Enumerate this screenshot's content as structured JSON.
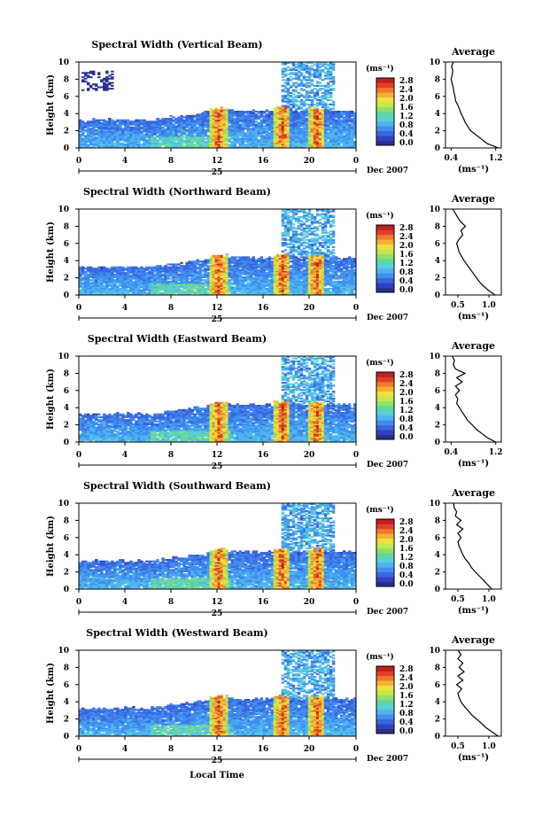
{
  "colors": {
    "colormap": [
      "#2a2f8f",
      "#3040c0",
      "#3a66e0",
      "#3f8fef",
      "#4fb4ef",
      "#58cfd9",
      "#5fd6a0",
      "#8ee06a",
      "#c4e84a",
      "#f0e040",
      "#f5b133",
      "#f07a2a",
      "#e0402a",
      "#c0201e"
    ],
    "background": "#ffffff"
  },
  "shared": {
    "height_axis_label": "Height (km)",
    "colorbar_unit": "(ms⁻¹)",
    "colorbar_ticks": [
      "2.8",
      "2.4",
      "2.0",
      "1.6",
      "1.2",
      "0.8",
      "0.4",
      "0.0"
    ],
    "time_ticks": [
      "0",
      "4",
      "8",
      "12",
      "16",
      "20",
      "0"
    ],
    "date_day": "25",
    "date_label": "Dec 2007",
    "height_ticks": [
      "10",
      "8",
      "6",
      "4",
      "2",
      "0"
    ],
    "avg_title": "Average",
    "avg_unit": "(ms⁻¹)",
    "xlabel": "Local Time"
  },
  "chart_data": [
    {
      "type": "heatmap",
      "title": "Spectral Width (Vertical Beam)",
      "xlabel": "Local Time",
      "ylabel": "Height (km)",
      "xlim": [
        0,
        24
      ],
      "ylim": [
        0,
        10
      ],
      "clim": [
        0.0,
        2.8
      ],
      "average_profile": {
        "xticks": [
          "0.4",
          "1.2"
        ],
        "xlim": [
          0.3,
          1.3
        ],
        "height": [
          0,
          0.5,
          1,
          1.5,
          2,
          2.5,
          3,
          3.5,
          4,
          4.5,
          5,
          5.5,
          6,
          6.5,
          7,
          7.5,
          8,
          8.5,
          9,
          9.5,
          10
        ],
        "width": [
          1.25,
          1.05,
          0.95,
          0.85,
          0.75,
          0.7,
          0.65,
          0.62,
          0.58,
          0.55,
          0.52,
          0.48,
          0.47,
          0.45,
          0.44,
          0.42,
          0.4,
          0.42,
          0.43,
          0.41,
          0.44
        ]
      }
    },
    {
      "type": "heatmap",
      "title": "Spectral Width (Northward Beam)",
      "xlabel": "Local Time",
      "ylabel": "Height (km)",
      "xlim": [
        0,
        24
      ],
      "ylim": [
        0,
        10
      ],
      "clim": [
        0.0,
        2.8
      ],
      "average_profile": {
        "xticks": [
          "0.5",
          "1.0"
        ],
        "xlim": [
          0.3,
          1.2
        ],
        "height": [
          0,
          0.5,
          1,
          1.5,
          2,
          2.5,
          3,
          3.5,
          4,
          4.5,
          5,
          5.5,
          6,
          6.5,
          7,
          7.5,
          8,
          8.5,
          9,
          9.5,
          10
        ],
        "width": [
          1.1,
          1.0,
          0.92,
          0.85,
          0.8,
          0.75,
          0.7,
          0.65,
          0.6,
          0.56,
          0.52,
          0.5,
          0.48,
          0.52,
          0.58,
          0.55,
          0.62,
          0.55,
          0.5,
          0.46,
          0.42
        ]
      }
    },
    {
      "type": "heatmap",
      "title": "Spectral Width (Eastward Beam)",
      "xlabel": "Local Time",
      "ylabel": "Height (km)",
      "xlim": [
        0,
        24
      ],
      "ylim": [
        0,
        10
      ],
      "clim": [
        0.0,
        2.8
      ],
      "average_profile": {
        "xticks": [
          "0.4",
          "1.2"
        ],
        "xlim": [
          0.3,
          1.3
        ],
        "height": [
          0,
          0.5,
          1,
          1.5,
          2,
          2.5,
          3,
          3.5,
          4,
          4.5,
          5,
          5.5,
          6,
          6.5,
          7,
          7.5,
          8,
          8.5,
          9,
          9.5,
          10
        ],
        "width": [
          1.2,
          1.05,
          0.95,
          0.85,
          0.78,
          0.7,
          0.65,
          0.6,
          0.55,
          0.5,
          0.52,
          0.48,
          0.55,
          0.48,
          0.6,
          0.5,
          0.65,
          0.48,
          0.44,
          0.46,
          0.42
        ]
      }
    },
    {
      "type": "heatmap",
      "title": "Spectral Width (Southward Beam)",
      "xlabel": "Local Time",
      "ylabel": "Height (km)",
      "xlim": [
        0,
        24
      ],
      "ylim": [
        0,
        10
      ],
      "clim": [
        0.0,
        2.8
      ],
      "average_profile": {
        "xticks": [
          "0.5",
          "1.0"
        ],
        "xlim": [
          0.3,
          1.2
        ],
        "height": [
          0,
          0.5,
          1,
          1.5,
          2,
          2.5,
          3,
          3.5,
          4,
          4.5,
          5,
          5.5,
          6,
          6.5,
          7,
          7.5,
          8,
          8.5,
          9,
          9.5,
          10
        ],
        "width": [
          1.05,
          0.98,
          0.92,
          0.85,
          0.78,
          0.72,
          0.68,
          0.62,
          0.58,
          0.55,
          0.52,
          0.5,
          0.55,
          0.5,
          0.58,
          0.48,
          0.55,
          0.46,
          0.48,
          0.44,
          0.43
        ]
      }
    },
    {
      "type": "heatmap",
      "title": "Spectral Width (Westward Beam)",
      "xlabel": "Local Time",
      "ylabel": "Height (km)",
      "xlim": [
        0,
        24
      ],
      "ylim": [
        0,
        10
      ],
      "clim": [
        0.0,
        2.8
      ],
      "average_profile": {
        "xticks": [
          "0.5",
          "1.0"
        ],
        "xlim": [
          0.3,
          1.2
        ],
        "height": [
          0,
          0.5,
          1,
          1.5,
          2,
          2.5,
          3,
          3.5,
          4,
          4.5,
          5,
          5.5,
          6,
          6.5,
          7,
          7.5,
          8,
          8.5,
          9,
          9.5,
          10
        ],
        "width": [
          1.15,
          1.05,
          0.95,
          0.88,
          0.8,
          0.72,
          0.66,
          0.6,
          0.55,
          0.52,
          0.5,
          0.56,
          0.48,
          0.58,
          0.5,
          0.6,
          0.52,
          0.58,
          0.5,
          0.55,
          0.5
        ]
      }
    }
  ]
}
